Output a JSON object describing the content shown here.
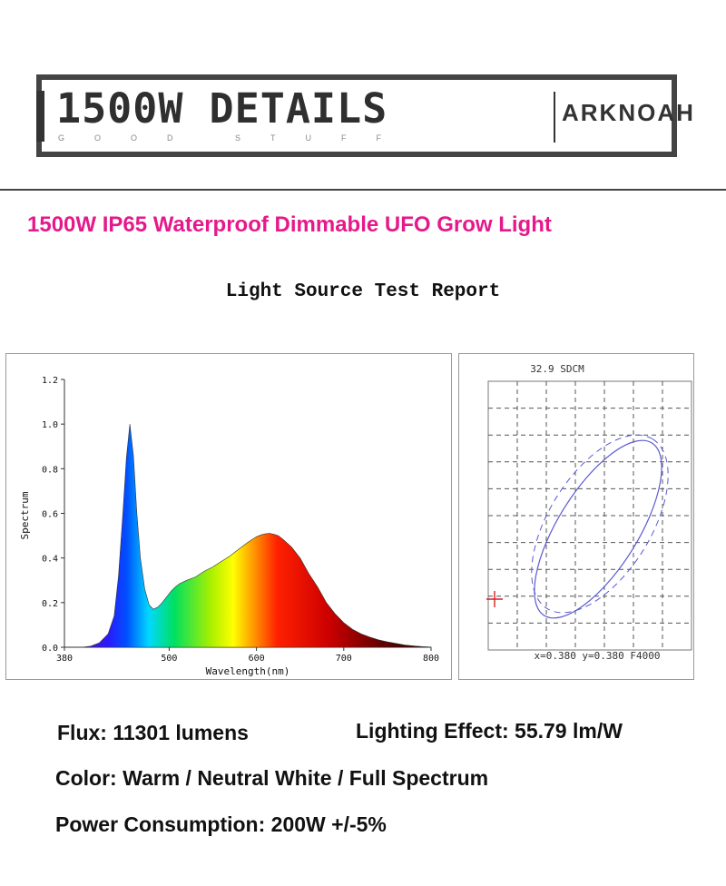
{
  "header": {
    "title": "1500W DETAILS",
    "subtitle": "GOOD STUFF",
    "brand": "ARKNOAH"
  },
  "product_title": "1500W IP65 Waterproof Dimmable UFO Grow Light",
  "report_title": "Light Source Test Report",
  "chart_data": [
    {
      "type": "area",
      "title": "",
      "xlabel": "Wavelength(nm)",
      "ylabel": "Spectrum",
      "xlim": [
        380,
        800
      ],
      "ylim": [
        0,
        1.2
      ],
      "x_ticks": [
        380,
        500,
        600,
        700,
        800
      ],
      "y_ticks": [
        "0.0",
        "0.2",
        "0.4",
        "0.6",
        "0.8",
        "1.0",
        "1.2"
      ],
      "fill": "visible-spectrum gradient",
      "series": [
        {
          "x": [
            380,
            400,
            410,
            420,
            430,
            437,
            442,
            447,
            451,
            455,
            459,
            463,
            467,
            472,
            477,
            482,
            487,
            492,
            497,
            502,
            507,
            512,
            520,
            530,
            540,
            550,
            560,
            570,
            580,
            590,
            600,
            605,
            610,
            615,
            620,
            625,
            630,
            640,
            650,
            660,
            670,
            680,
            690,
            700,
            710,
            720,
            730,
            740,
            750,
            760,
            770,
            780,
            790,
            800
          ],
          "y": [
            0.0,
            0.0,
            0.005,
            0.02,
            0.06,
            0.14,
            0.32,
            0.6,
            0.85,
            1.0,
            0.86,
            0.6,
            0.4,
            0.26,
            0.19,
            0.17,
            0.18,
            0.2,
            0.225,
            0.25,
            0.27,
            0.285,
            0.3,
            0.315,
            0.34,
            0.36,
            0.385,
            0.41,
            0.44,
            0.47,
            0.495,
            0.503,
            0.508,
            0.51,
            0.506,
            0.5,
            0.485,
            0.45,
            0.4,
            0.33,
            0.27,
            0.2,
            0.15,
            0.11,
            0.08,
            0.06,
            0.045,
            0.033,
            0.024,
            0.017,
            0.01,
            0.006,
            0.003,
            0.001
          ]
        }
      ]
    },
    {
      "type": "scatter",
      "title": "32.9 SDCM",
      "footer": "x=0.380 y=0.380 F4000",
      "grid": true,
      "marker": {
        "color": "#d22222",
        "symbol": "cross"
      },
      "ellipse_color": "#5a5ad2"
    }
  ],
  "specs": {
    "flux": "Flux: 11301 lumens",
    "effect": "Lighting Effect: 55.79 lm/W",
    "color": "Color: Warm / Neutral White / Full Spectrum",
    "power": "Power Consumption: 200W +/-5%"
  }
}
